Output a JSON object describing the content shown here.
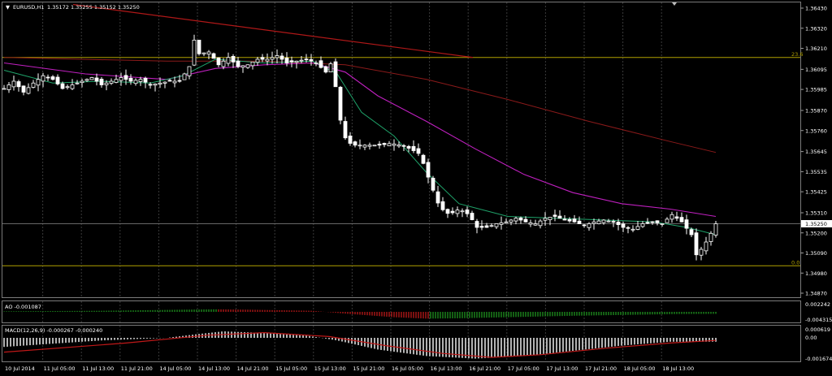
{
  "header": {
    "symbol_label": "EURUSD,H1",
    "ohlc": "1.35172 1.35255 1.35152 1.35250"
  },
  "indicators": {
    "ao_label": "AO -0.001087",
    "macd_label": "MACD(12,26,9) -0.000267 -0.000240"
  },
  "colors": {
    "background": "#000000",
    "grid": "#3a3a3a",
    "candle": "#ffffff",
    "bull_candle_body": "#000000",
    "ema_fast": "#1fa36a",
    "ma_mid": "#c020c0",
    "ma_slow": "#8b1a1a",
    "trendline": "#b01818",
    "fib": "#b0a000",
    "ao_up": "#1d8a1d",
    "ao_down": "#b01818",
    "macd_hist": "#ffffff",
    "macd_signal": "#c01818"
  },
  "chart_data": {
    "type": "candlestick",
    "symbol": "EURUSD",
    "timeframe": "H1",
    "price_axis_ticks": [
      "1.36430",
      "1.36320",
      "1.36210",
      "1.36095",
      "1.35985",
      "1.35870",
      "1.35760",
      "1.35645",
      "1.35535",
      "1.35425",
      "1.35310",
      "1.35200",
      "1.35090",
      "1.34980",
      "1.34870"
    ],
    "ylim": [
      1.3487,
      1.3643
    ],
    "current_price": "1.35250",
    "time_axis_ticks": [
      "10 Jul 2014",
      "11 Jul 05:00",
      "11 Jul 13:00",
      "11 Jul 21:00",
      "14 Jul 05:00",
      "14 Jul 13:00",
      "14 Jul 21:00",
      "15 Jul 05:00",
      "15 Jul 13:00",
      "15 Jul 21:00",
      "16 Jul 05:00",
      "16 Jul 13:00",
      "16 Jul 21:00",
      "17 Jul 05:00",
      "17 Jul 13:00",
      "17 Jul 21:00",
      "18 Jul 05:00",
      "18 Jul 13:00"
    ],
    "fibonacci": [
      {
        "label": "23.6",
        "price": 1.3616
      },
      {
        "label": "0.0",
        "price": 1.3502
      }
    ],
    "trendline": {
      "start_price": 1.3645,
      "end_price": 1.3616
    },
    "close_path": [
      [
        0,
        1.3599
      ],
      [
        12,
        1.3603
      ],
      [
        24,
        1.3597
      ],
      [
        36,
        1.3602
      ],
      [
        48,
        1.3606
      ],
      [
        60,
        1.3604
      ],
      [
        72,
        1.3599
      ],
      [
        84,
        1.3601
      ],
      [
        96,
        1.3603
      ],
      [
        108,
        1.3605
      ],
      [
        120,
        1.3601
      ],
      [
        132,
        1.3603
      ],
      [
        144,
        1.3605
      ],
      [
        156,
        1.3603
      ],
      [
        168,
        1.3604
      ],
      [
        180,
        1.3601
      ],
      [
        192,
        1.3602
      ],
      [
        204,
        1.3603
      ],
      [
        216,
        1.3603
      ],
      [
        228,
        1.3611
      ],
      [
        232,
        1.3628
      ],
      [
        240,
        1.3618
      ],
      [
        252,
        1.3619
      ],
      [
        264,
        1.3612
      ],
      [
        276,
        1.3616
      ],
      [
        288,
        1.3611
      ],
      [
        300,
        1.3612
      ],
      [
        312,
        1.3615
      ],
      [
        324,
        1.3615
      ],
      [
        336,
        1.3617
      ],
      [
        348,
        1.3613
      ],
      [
        360,
        1.3614
      ],
      [
        372,
        1.3615
      ],
      [
        384,
        1.3613
      ],
      [
        396,
        1.3608
      ],
      [
        404,
        1.3614
      ],
      [
        412,
        1.3586
      ],
      [
        418,
        1.3573
      ],
      [
        428,
        1.3568
      ],
      [
        440,
        1.3568
      ],
      [
        452,
        1.3568
      ],
      [
        464,
        1.3568
      ],
      [
        476,
        1.3569
      ],
      [
        488,
        1.3568
      ],
      [
        500,
        1.3566
      ],
      [
        512,
        1.3563
      ],
      [
        524,
        1.3548
      ],
      [
        536,
        1.3534
      ],
      [
        548,
        1.353
      ],
      [
        560,
        1.3533
      ],
      [
        572,
        1.353
      ],
      [
        582,
        1.3523
      ],
      [
        594,
        1.3523
      ],
      [
        606,
        1.3525
      ],
      [
        618,
        1.3526
      ],
      [
        630,
        1.3528
      ],
      [
        642,
        1.3526
      ],
      [
        654,
        1.3525
      ],
      [
        666,
        1.3528
      ],
      [
        678,
        1.3529
      ],
      [
        690,
        1.3527
      ],
      [
        702,
        1.3526
      ],
      [
        714,
        1.3524
      ],
      [
        726,
        1.3526
      ],
      [
        738,
        1.3527
      ],
      [
        750,
        1.3526
      ],
      [
        762,
        1.3523
      ],
      [
        774,
        1.3522
      ],
      [
        786,
        1.3525
      ],
      [
        798,
        1.3526
      ],
      [
        810,
        1.3525
      ],
      [
        822,
        1.353
      ],
      [
        834,
        1.3526
      ],
      [
        846,
        1.3519
      ],
      [
        852,
        1.3508
      ],
      [
        860,
        1.3512
      ],
      [
        868,
        1.3518
      ],
      [
        876,
        1.3525
      ]
    ],
    "ema_fast": [
      [
        0,
        1.3609
      ],
      [
        60,
        1.3602
      ],
      [
        120,
        1.3603
      ],
      [
        180,
        1.3602
      ],
      [
        220,
        1.3606
      ],
      [
        260,
        1.3615
      ],
      [
        320,
        1.3613
      ],
      [
        380,
        1.3614
      ],
      [
        410,
        1.3607
      ],
      [
        440,
        1.3586
      ],
      [
        480,
        1.3573
      ],
      [
        520,
        1.3553
      ],
      [
        560,
        1.3536
      ],
      [
        620,
        1.3529
      ],
      [
        680,
        1.3528
      ],
      [
        740,
        1.3527
      ],
      [
        800,
        1.3526
      ],
      [
        840,
        1.3523
      ],
      [
        876,
        1.3519
      ]
    ],
    "ma_mid": [
      [
        0,
        1.3613
      ],
      [
        100,
        1.3607
      ],
      [
        200,
        1.3604
      ],
      [
        260,
        1.361
      ],
      [
        320,
        1.3612
      ],
      [
        380,
        1.3613
      ],
      [
        420,
        1.3608
      ],
      [
        460,
        1.3595
      ],
      [
        520,
        1.3581
      ],
      [
        580,
        1.3566
      ],
      [
        640,
        1.3552
      ],
      [
        700,
        1.3542
      ],
      [
        760,
        1.3536
      ],
      [
        820,
        1.3533
      ],
      [
        876,
        1.3529
      ]
    ],
    "ma_slow": [
      [
        0,
        1.3616
      ],
      [
        200,
        1.3614
      ],
      [
        320,
        1.3614
      ],
      [
        420,
        1.3612
      ],
      [
        520,
        1.3604
      ],
      [
        620,
        1.3593
      ],
      [
        720,
        1.3581
      ],
      [
        820,
        1.357
      ],
      [
        876,
        1.3564
      ]
    ],
    "ao": {
      "label": "AO",
      "value": -0.001087,
      "scale_ticks": [
        "0.002242",
        "-0.004315"
      ],
      "profile": [
        [
          0,
          0.0003
        ],
        [
          120,
          0.0006
        ],
        [
          220,
          0.0012
        ],
        [
          260,
          0.0014
        ],
        [
          300,
          0.0012
        ],
        [
          380,
          0.0006
        ],
        [
          420,
          -0.001
        ],
        [
          480,
          -0.003
        ],
        [
          520,
          -0.0038
        ],
        [
          560,
          -0.0036
        ],
        [
          620,
          -0.003
        ],
        [
          700,
          -0.0022
        ],
        [
          780,
          -0.0016
        ],
        [
          830,
          -0.0012
        ],
        [
          876,
          -0.0011
        ]
      ]
    },
    "macd": {
      "label": "MACD(12,26,9)",
      "main": -0.000267,
      "signal": -0.00024,
      "scale_ticks": [
        "0.000619",
        "0.00",
        "-0.001674"
      ],
      "profile": [
        [
          0,
          -0.0007
        ],
        [
          120,
          -0.0002
        ],
        [
          200,
          0.0
        ],
        [
          240,
          0.0003
        ],
        [
          270,
          0.0005
        ],
        [
          310,
          0.0004
        ],
        [
          370,
          0.0002
        ],
        [
          410,
          -0.0002
        ],
        [
          460,
          -0.0009
        ],
        [
          520,
          -0.0014
        ],
        [
          580,
          -0.0016
        ],
        [
          640,
          -0.0014
        ],
        [
          700,
          -0.001
        ],
        [
          760,
          -0.0006
        ],
        [
          820,
          -0.0003
        ],
        [
          876,
          -0.0003
        ]
      ],
      "signal_profile": [
        [
          0,
          -0.0011
        ],
        [
          150,
          -0.0004
        ],
        [
          250,
          0.0002
        ],
        [
          320,
          0.0004
        ],
        [
          400,
          0.0001
        ],
        [
          470,
          -0.0006
        ],
        [
          540,
          -0.0012
        ],
        [
          600,
          -0.0015
        ],
        [
          660,
          -0.0013
        ],
        [
          740,
          -0.0008
        ],
        [
          820,
          -0.0004
        ],
        [
          876,
          -0.0002
        ]
      ]
    }
  }
}
